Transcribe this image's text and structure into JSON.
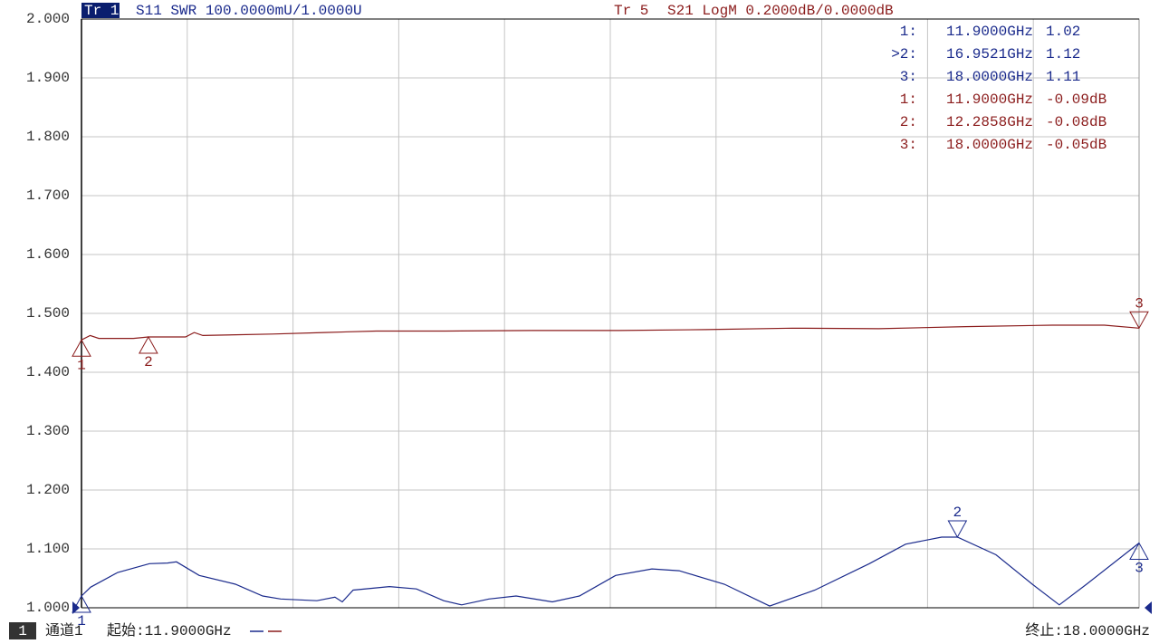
{
  "chart_data": {
    "type": "line",
    "ylim": [
      1.0,
      2.0
    ],
    "yticks": [
      {
        "value": 1.0,
        "label": "1.000"
      },
      {
        "value": 1.1,
        "label": "1.100"
      },
      {
        "value": 1.2,
        "label": "1.200"
      },
      {
        "value": 1.3,
        "label": "1.300"
      },
      {
        "value": 1.4,
        "label": "1.400"
      },
      {
        "value": 1.5,
        "label": "1.500"
      },
      {
        "value": 1.6,
        "label": "1.600"
      },
      {
        "value": 1.7,
        "label": "1.700"
      },
      {
        "value": 1.8,
        "label": "1.800"
      },
      {
        "value": 1.9,
        "label": "1.900"
      },
      {
        "value": 2.0,
        "label": "2.000"
      }
    ],
    "y2lim": [
      -1.0,
      1.0
    ],
    "xlim": [
      11.9,
      18.0
    ],
    "x_divisions": 10,
    "grid": true,
    "channel": "1",
    "channel_name": "通道1",
    "start_label": "起始:11.9000GHz",
    "stop_label": "终止:18.0000GHz",
    "series": [
      {
        "trace": "Tr 1",
        "name": "S11 SWR 100.0000mU/1.0000U",
        "color": "#1a2a8c",
        "axis": "y",
        "x": [
          11.9,
          11.952,
          12.109,
          12.292,
          12.396,
          12.448,
          12.579,
          12.788,
          12.945,
          13.049,
          13.258,
          13.362,
          13.404,
          13.467,
          13.676,
          13.832,
          13.989,
          14.093,
          14.25,
          14.407,
          14.616,
          14.772,
          14.981,
          15.19,
          15.347,
          15.608,
          15.869,
          16.13,
          16.444,
          16.653,
          16.861,
          16.9521,
          17.175,
          17.384,
          17.54,
          17.697,
          18.0
        ],
        "values": [
          1.02,
          1.035,
          1.06,
          1.075,
          1.076,
          1.078,
          1.055,
          1.04,
          1.02,
          1.015,
          1.012,
          1.018,
          1.01,
          1.03,
          1.036,
          1.032,
          1.012,
          1.005,
          1.015,
          1.02,
          1.01,
          1.02,
          1.055,
          1.066,
          1.063,
          1.04,
          1.003,
          1.03,
          1.075,
          1.108,
          1.12,
          1.12,
          1.09,
          1.04,
          1.005,
          1.04,
          1.11
        ],
        "markers": [
          {
            "label": "1",
            "readout": "1:",
            "x": 11.9,
            "x_label": "11.9000GHz",
            "value": 1.02,
            "pointer": "up"
          },
          {
            "label": "2",
            "readout": ">2:",
            "x": 16.9521,
            "x_label": "16.9521GHz",
            "value": 1.12,
            "pointer": "down"
          },
          {
            "label": "3",
            "readout": "3:",
            "x": 18.0,
            "x_label": "18.0000GHz",
            "value": 1.11,
            "pointer": "up"
          }
        ]
      },
      {
        "trace": "Tr 5",
        "name": "S21 LogM 0.2000dB/0.0000dB",
        "color": "#8b1c1c",
        "axis": "y2",
        "x": [
          11.9,
          11.95,
          12.0,
          12.2,
          12.2858,
          12.5,
          12.55,
          12.6,
          13.0,
          13.3,
          13.6,
          14.0,
          14.5,
          15.0,
          15.5,
          16.0,
          16.5,
          17.0,
          17.5,
          17.8,
          18.0
        ],
        "values": [
          -0.09,
          -0.075,
          -0.085,
          -0.085,
          -0.08,
          -0.08,
          -0.065,
          -0.075,
          -0.07,
          -0.065,
          -0.06,
          -0.06,
          -0.058,
          -0.058,
          -0.055,
          -0.05,
          -0.052,
          -0.045,
          -0.04,
          -0.04,
          -0.05
        ],
        "markers": [
          {
            "label": "1",
            "readout": "1:",
            "x": 11.9,
            "x_label": "11.9000GHz",
            "value": -0.09,
            "value_label": "-0.09dB",
            "pointer": "up"
          },
          {
            "label": "2",
            "readout": "2:",
            "x": 12.2858,
            "x_label": "12.2858GHz",
            "value": -0.08,
            "value_label": "-0.08dB",
            "pointer": "up"
          },
          {
            "label": "3",
            "readout": "3:",
            "x": 18.0,
            "x_label": "18.0000GHz",
            "value": -0.05,
            "value_label": "-0.05dB",
            "pointer": "down"
          }
        ]
      }
    ]
  }
}
